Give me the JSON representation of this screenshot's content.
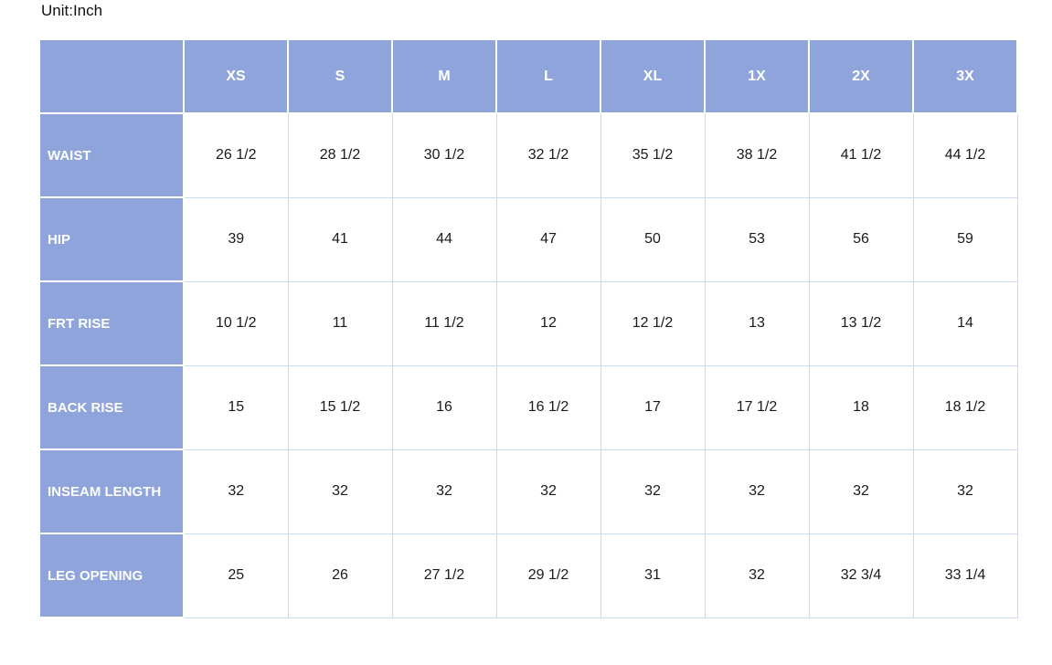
{
  "page": {
    "unit_label": "Unit:Inch"
  },
  "colors": {
    "header_bg": "#8EA4DB",
    "header_text": "#FFFFFF",
    "grid_line": "#CDD9EF",
    "value_text": "#1A1A1A"
  },
  "chart_data": {
    "type": "table",
    "title": "Unit:Inch",
    "columns": [
      "XS",
      "S",
      "M",
      "L",
      "XL",
      "1X",
      "2X",
      "3X"
    ],
    "rows": [
      {
        "label": "WAIST",
        "values": [
          "26 1/2",
          "28 1/2",
          "30 1/2",
          "32 1/2",
          "35 1/2",
          "38 1/2",
          "41 1/2",
          "44 1/2"
        ]
      },
      {
        "label": "HIP",
        "values": [
          "39",
          "41",
          "44",
          "47",
          "50",
          "53",
          "56",
          "59"
        ]
      },
      {
        "label": "FRT RISE",
        "values": [
          "10 1/2",
          "11",
          "11 1/2",
          "12",
          "12 1/2",
          "13",
          "13 1/2",
          "14"
        ]
      },
      {
        "label": "BACK RISE",
        "values": [
          "15",
          "15 1/2",
          "16",
          "16 1/2",
          "17",
          "17 1/2",
          "18",
          "18 1/2"
        ]
      },
      {
        "label": "INSEAM LENGTH",
        "values": [
          "32",
          "32",
          "32",
          "32",
          "32",
          "32",
          "32",
          "32"
        ]
      },
      {
        "label": "LEG OPENING",
        "values": [
          "25",
          "26",
          "27 1/2",
          "29 1/2",
          "31",
          "32",
          "32 3/4",
          "33 1/4"
        ]
      }
    ]
  }
}
